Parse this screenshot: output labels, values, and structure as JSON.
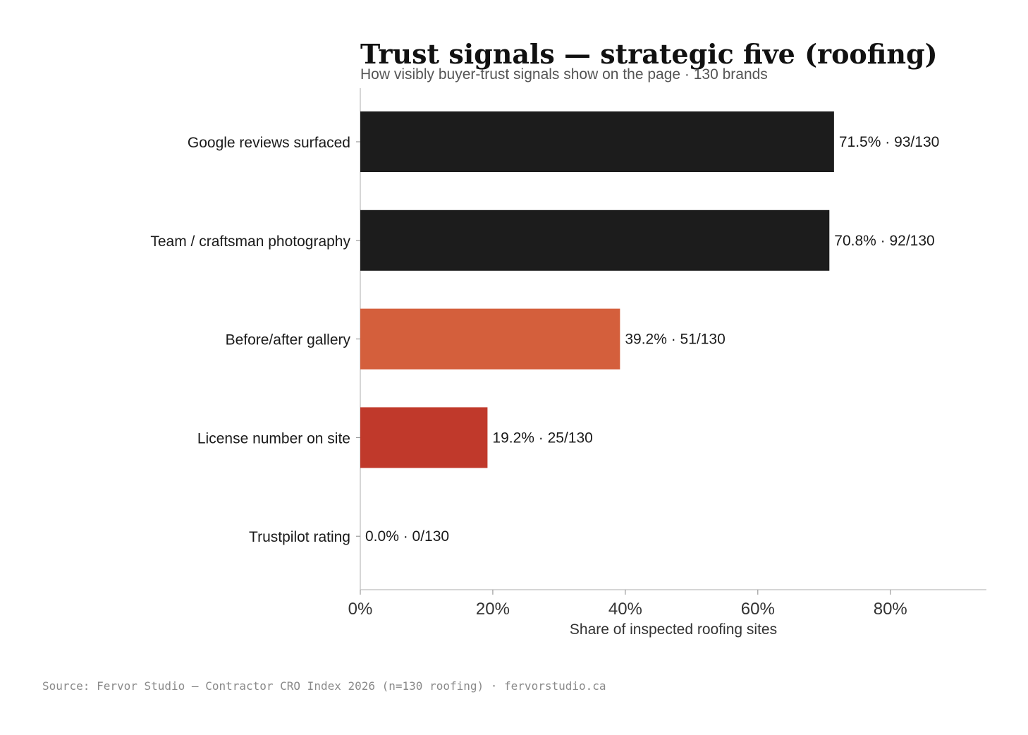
{
  "chart_data": {
    "type": "bar",
    "orientation": "horizontal",
    "title": "Trust signals — strategic five (roofing)",
    "subtitle": "How visibly buyer-trust signals show on the page · 130 brands",
    "xlabel": "Share of inspected roofing sites",
    "ylabel": "",
    "xlim": [
      0,
      94.5
    ],
    "x_ticks": [
      0,
      20,
      40,
      60,
      80
    ],
    "x_tick_labels": [
      "0%",
      "20%",
      "40%",
      "60%",
      "80%"
    ],
    "categories": [
      "Google reviews surfaced",
      "Team / craftsman photography",
      "Before/after gallery",
      "License number on site",
      "Trustpilot rating"
    ],
    "values": [
      71.5,
      70.8,
      39.2,
      19.2,
      0.0
    ],
    "value_labels": [
      "71.5% · 93/130",
      "70.8% · 92/130",
      "39.2% · 51/130",
      "19.2% · 25/130",
      "0.0% · 0/130"
    ],
    "colors": [
      "#1c1c1c",
      "#1c1c1c",
      "#d45f3c",
      "#c0392b",
      "#c0392b"
    ],
    "grid": false,
    "legend": "none",
    "source": "Source: Fervor Studio — Contractor CRO Index 2026 (n=130 roofing) · fervorstudio.ca"
  }
}
